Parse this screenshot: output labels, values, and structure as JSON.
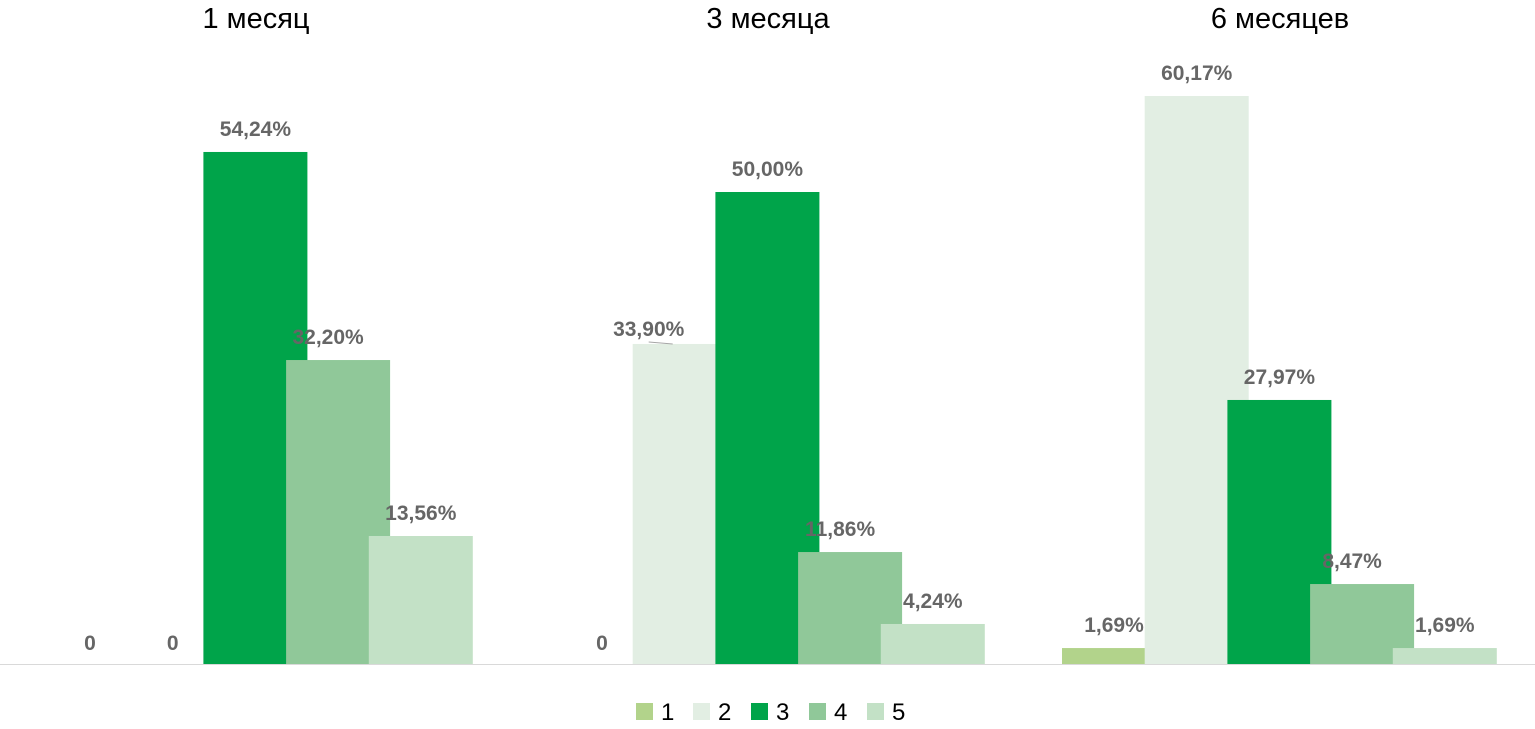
{
  "chart_data": {
    "type": "bar",
    "panels": [
      {
        "title": "1 месяц",
        "values": [
          0,
          0,
          54.24,
          32.2,
          13.56
        ],
        "labels": [
          "0",
          "0",
          "54,24%",
          "32,20%",
          "13,56%"
        ]
      },
      {
        "title": "3 месяца",
        "values": [
          0,
          33.9,
          50.0,
          11.86,
          4.24
        ],
        "labels": [
          "0",
          "33,90%",
          "50,00%",
          "11,86%",
          "4,24%"
        ]
      },
      {
        "title": "6 месяцев",
        "values": [
          1.69,
          60.17,
          27.97,
          8.47,
          1.69
        ],
        "labels": [
          "1,69%",
          "60,17%",
          "27,97%",
          "8,47%",
          "1,69%"
        ]
      }
    ],
    "series": [
      {
        "name": "1",
        "color": "#B2D38B"
      },
      {
        "name": "2",
        "color": "#E2EEE3"
      },
      {
        "name": "3",
        "color": "#00A44A"
      },
      {
        "name": "4",
        "color": "#90C899"
      },
      {
        "name": "5",
        "color": "#C3E1C6"
      }
    ],
    "unit": "%",
    "legend": "bottom",
    "grid": false
  }
}
